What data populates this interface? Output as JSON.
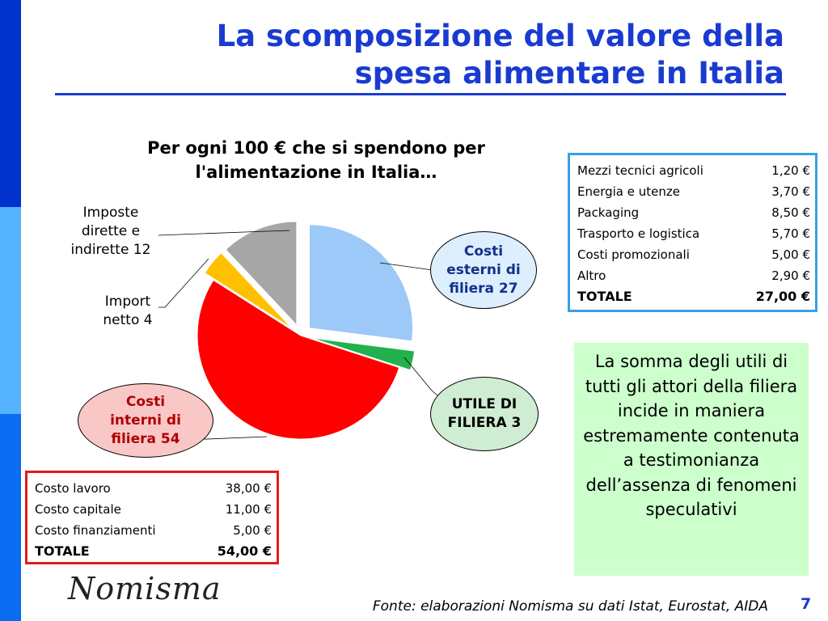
{
  "slide": {
    "title_line1": "La scomposizione del valore della",
    "title_line2": "spesa alimentare in Italia",
    "page_number": "7",
    "logo_text": "Nomisma",
    "source": "Fonte: elaborazioni Nomisma su dati Istat, Eurostat, AIDA"
  },
  "chart_data": {
    "type": "pie",
    "title": "Per ogni 100 € che si spendono per l'alimentazione in Italia…",
    "slices": [
      {
        "name": "Costi esterni di filiera",
        "value": 27,
        "color": "#9cc9f7",
        "exploded": true
      },
      {
        "name": "UTILE DI FILIERA",
        "value": 3,
        "color": "#22b14c",
        "exploded": true
      },
      {
        "name": "Costi interni di filiera",
        "value": 54,
        "color": "#ff0000",
        "exploded": false
      },
      {
        "name": "Import netto",
        "value": 4,
        "color": "#ffc000",
        "exploded": true
      },
      {
        "name": "Imposte dirette e indirette",
        "value": 12,
        "color": "#a6a6a6",
        "exploded": true
      }
    ],
    "labels": {
      "imposte_line1": "Imposte",
      "imposte_line2": "dirette e",
      "imposte_line3": "indirette 12",
      "import_line1": "Import",
      "import_line2": "netto 4",
      "esterni_line1": "Costi",
      "esterni_line2": "esterni di",
      "esterni_line3": "filiera 27",
      "utile_line1": "UTILE DI",
      "utile_line2": "FILIERA 3",
      "interni_line1": "Costi",
      "interni_line2": "interni di",
      "interni_line3": "filiera 54"
    },
    "colors": {
      "esterni_bubble": "#ddeeff",
      "utile_bubble": "#cfedd2",
      "interni_bubble": "#f9c8c6"
    }
  },
  "table_esterni": {
    "rows": [
      {
        "label": "Mezzi tecnici agricoli",
        "value": "1,20 €"
      },
      {
        "label": "Energia e utenze",
        "value": "3,70 €"
      },
      {
        "label": "Packaging",
        "value": "8,50 €"
      },
      {
        "label": "Trasporto e logistica",
        "value": "5,70 €"
      },
      {
        "label": "Costi promozionali",
        "value": "5,00 €"
      },
      {
        "label": "Altro",
        "value": "2,90 €"
      }
    ],
    "total_label": "TOTALE",
    "total_value": "27,00 €"
  },
  "table_interni": {
    "rows": [
      {
        "label": "Costo lavoro",
        "value": "38,00 €"
      },
      {
        "label": "Costo capitale",
        "value": "11,00 €"
      },
      {
        "label": "Costo finanziamenti",
        "value": "5,00 €"
      }
    ],
    "total_label": "TOTALE",
    "total_value": "54,00 €"
  },
  "note": {
    "text": "La somma degli utili di tutti gli attori della filiera incide in maniera estremamente contenuta a testimonianza dell’assenza di fenomeni speculativi"
  }
}
